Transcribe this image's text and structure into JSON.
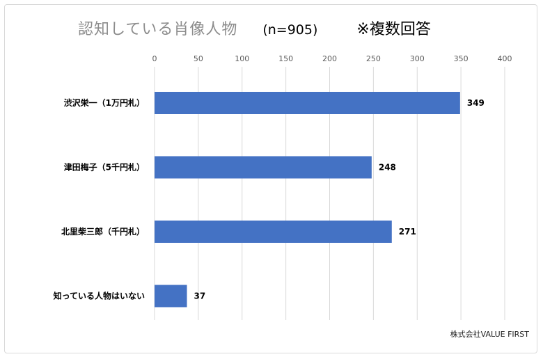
{
  "chart_data": {
    "type": "bar",
    "orientation": "horizontal",
    "title": "認知している肖像人物",
    "sample_size": "(n=905)",
    "note": "※複数回答",
    "categories": [
      "渋沢栄一（1万円札）",
      "津田梅子（5千円札）",
      "北里柴三郎（千円札）",
      "知っている人物はいない"
    ],
    "values": [
      349,
      248,
      271,
      37
    ],
    "xlim": [
      0,
      400
    ],
    "xticks": [
      0,
      50,
      100,
      150,
      200,
      250,
      300,
      350,
      400
    ],
    "grid": true,
    "legend": "none",
    "bar_color": "#4472c4"
  },
  "credit": "株式会社VALUE FIRST"
}
